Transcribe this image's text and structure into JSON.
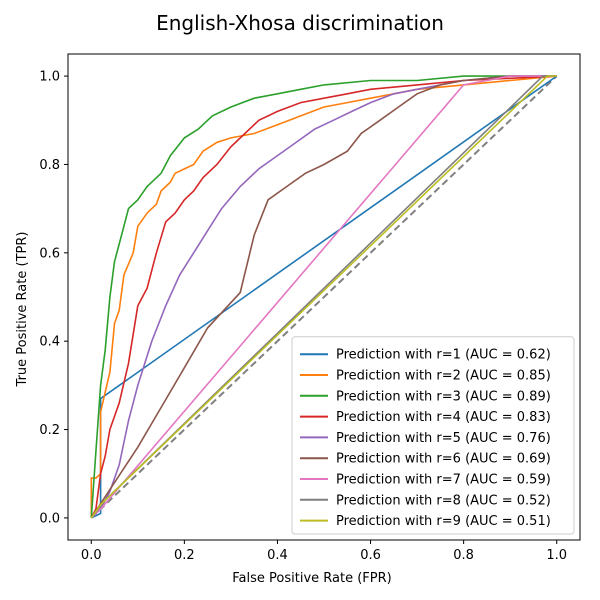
{
  "chart_data": {
    "type": "line",
    "title": "English-Xhosa discrimination",
    "xlabel": "False Positive Rate (FPR)",
    "ylabel": "True Positive Rate (TPR)",
    "xlim": [
      -0.05,
      1.05
    ],
    "ylim": [
      -0.05,
      1.05
    ],
    "xticks": [
      "0.0",
      "0.2",
      "0.4",
      "0.6",
      "0.8",
      "1.0"
    ],
    "yticks": [
      "0.0",
      "0.2",
      "0.4",
      "0.6",
      "0.8",
      "1.0"
    ],
    "grid": false,
    "legend_position": "lower-right",
    "diagonal": {
      "style": "dashed",
      "color": "#808080",
      "x": [
        0,
        1
      ],
      "y": [
        0,
        1
      ]
    },
    "series": [
      {
        "name": "Prediction with r=1 (AUC = 0.62)",
        "color": "#1f77b4",
        "x": [
          0,
          0.02,
          0.02,
          1.0
        ],
        "y": [
          0,
          0.01,
          0.27,
          1.0
        ]
      },
      {
        "name": "Prediction with r=2 (AUC = 0.85)",
        "color": "#ff7f0e",
        "x": [
          0,
          0,
          0.01,
          0.02,
          0.02,
          0.04,
          0.05,
          0.06,
          0.07,
          0.09,
          0.1,
          0.12,
          0.14,
          0.15,
          0.17,
          0.18,
          0.2,
          0.22,
          0.24,
          0.27,
          0.3,
          0.35,
          0.4,
          0.45,
          0.5,
          0.55,
          0.6,
          0.65,
          0.7,
          0.8,
          0.9,
          1.0
        ],
        "y": [
          0,
          0.09,
          0.09,
          0.1,
          0.24,
          0.33,
          0.44,
          0.47,
          0.55,
          0.6,
          0.66,
          0.69,
          0.71,
          0.74,
          0.76,
          0.78,
          0.79,
          0.8,
          0.83,
          0.85,
          0.86,
          0.87,
          0.89,
          0.91,
          0.93,
          0.94,
          0.95,
          0.96,
          0.97,
          0.98,
          0.99,
          1.0
        ]
      },
      {
        "name": "Prediction with r=3 (AUC = 0.89)",
        "color": "#2ca02c",
        "x": [
          0,
          0.01,
          0.02,
          0.03,
          0.04,
          0.05,
          0.06,
          0.07,
          0.08,
          0.1,
          0.12,
          0.15,
          0.17,
          0.2,
          0.23,
          0.26,
          0.3,
          0.35,
          0.4,
          0.45,
          0.5,
          0.6,
          0.7,
          0.8,
          0.9,
          1.0
        ],
        "y": [
          0,
          0.15,
          0.3,
          0.38,
          0.5,
          0.58,
          0.62,
          0.66,
          0.7,
          0.72,
          0.75,
          0.78,
          0.82,
          0.86,
          0.88,
          0.91,
          0.93,
          0.95,
          0.96,
          0.97,
          0.98,
          0.99,
          0.99,
          1.0,
          1.0,
          1.0
        ]
      },
      {
        "name": "Prediction with r=4 (AUC = 0.83)",
        "color": "#d62728",
        "x": [
          0,
          0.01,
          0.02,
          0.03,
          0.04,
          0.06,
          0.08,
          0.1,
          0.12,
          0.14,
          0.16,
          0.18,
          0.2,
          0.22,
          0.24,
          0.27,
          0.3,
          0.33,
          0.36,
          0.4,
          0.45,
          0.5,
          0.55,
          0.6,
          0.7,
          0.8,
          1.0
        ],
        "y": [
          0,
          0.02,
          0.1,
          0.14,
          0.2,
          0.26,
          0.35,
          0.48,
          0.52,
          0.6,
          0.67,
          0.69,
          0.72,
          0.74,
          0.77,
          0.8,
          0.84,
          0.87,
          0.9,
          0.92,
          0.94,
          0.95,
          0.96,
          0.97,
          0.98,
          0.99,
          1.0
        ]
      },
      {
        "name": "Prediction with r=5 (AUC = 0.76)",
        "color": "#9467bd",
        "x": [
          0,
          0.02,
          0.04,
          0.06,
          0.08,
          0.1,
          0.13,
          0.16,
          0.19,
          0.22,
          0.25,
          0.28,
          0.32,
          0.36,
          0.4,
          0.44,
          0.48,
          0.52,
          0.56,
          0.6,
          0.65,
          0.7,
          0.8,
          0.9,
          1.0
        ],
        "y": [
          0,
          0.02,
          0.06,
          0.12,
          0.22,
          0.3,
          0.4,
          0.48,
          0.55,
          0.6,
          0.65,
          0.7,
          0.75,
          0.79,
          0.82,
          0.85,
          0.88,
          0.9,
          0.92,
          0.94,
          0.96,
          0.97,
          0.99,
          1.0,
          1.0
        ]
      },
      {
        "name": "Prediction with r=6 (AUC = 0.69)",
        "color": "#8c564b",
        "x": [
          0,
          0.05,
          0.1,
          0.15,
          0.2,
          0.25,
          0.32,
          0.35,
          0.38,
          0.42,
          0.46,
          0.5,
          0.55,
          0.58,
          0.62,
          0.66,
          0.7,
          0.75,
          0.8,
          0.9,
          1.0
        ],
        "y": [
          0,
          0.08,
          0.16,
          0.25,
          0.34,
          0.43,
          0.51,
          0.64,
          0.72,
          0.75,
          0.78,
          0.8,
          0.83,
          0.87,
          0.9,
          0.93,
          0.96,
          0.98,
          0.99,
          1.0,
          1.0
        ]
      },
      {
        "name": "Prediction with r=7 (AUC = 0.59)",
        "color": "#e377c2",
        "x": [
          0,
          0.02,
          0.8,
          0.85,
          0.9,
          1.0
        ],
        "y": [
          0,
          0.02,
          0.98,
          0.99,
          1.0,
          1.0
        ]
      },
      {
        "name": "Prediction with r=8 (AUC = 0.52)",
        "color": "#7f7f7f",
        "x": [
          0,
          0.03,
          0.97,
          1.0
        ],
        "y": [
          0,
          0.04,
          1.0,
          1.0
        ]
      },
      {
        "name": "Prediction with r=9 (AUC = 0.51)",
        "color": "#bcbd22",
        "x": [
          0,
          0.02,
          0.98,
          1.0
        ],
        "y": [
          0,
          0.03,
          1.0,
          1.0
        ]
      }
    ]
  }
}
